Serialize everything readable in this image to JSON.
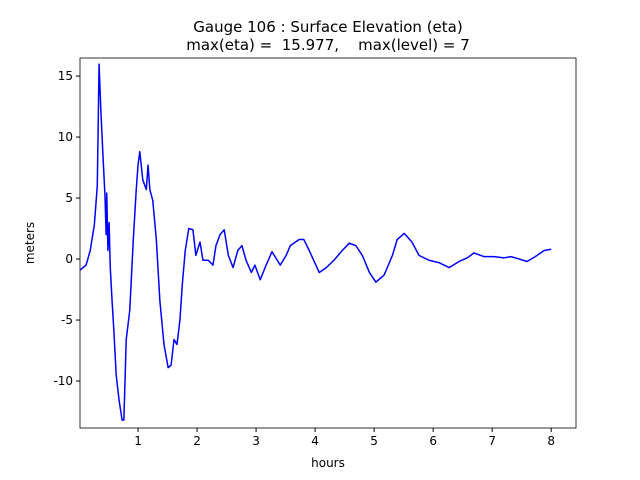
{
  "chart_data": {
    "type": "line",
    "title": "Gauge 106 : Surface Elevation (eta)",
    "subtitle": "max(eta) =  15.977,    max(level) = 7",
    "x_label": "hours",
    "y_label": "meters",
    "xlim": [
      0.017,
      8.42
    ],
    "ylim": [
      -13.85,
      16.48
    ],
    "xticks": [
      1,
      2,
      3,
      4,
      5,
      6,
      7,
      8
    ],
    "yticks": [
      -10,
      -5,
      0,
      5,
      10,
      15
    ],
    "grid": false,
    "series": [
      {
        "name": "eta",
        "color": "#0000ff",
        "x": [
          0.02,
          0.12,
          0.19,
          0.26,
          0.31,
          0.34,
          0.37,
          0.41,
          0.44,
          0.46,
          0.47,
          0.49,
          0.51,
          0.53,
          0.56,
          0.59,
          0.63,
          0.68,
          0.73,
          0.76,
          0.8,
          0.86,
          0.92,
          0.97,
          1.0,
          1.03,
          1.08,
          1.14,
          1.17,
          1.2,
          1.25,
          1.31,
          1.34,
          1.37,
          1.44,
          1.51,
          1.56,
          1.61,
          1.66,
          1.71,
          1.75,
          1.8,
          1.86,
          1.93,
          1.98,
          2.05,
          2.1,
          2.19,
          2.27,
          2.32,
          2.39,
          2.46,
          2.53,
          2.61,
          2.69,
          2.76,
          2.83,
          2.92,
          2.98,
          3.07,
          3.17,
          3.27,
          3.41,
          3.51,
          3.58,
          3.73,
          3.81,
          3.9,
          4.07,
          4.19,
          4.32,
          4.46,
          4.58,
          4.69,
          4.8,
          4.92,
          5.03,
          5.17,
          5.31,
          5.39,
          5.51,
          5.64,
          5.76,
          5.93,
          6.1,
          6.27,
          6.44,
          6.58,
          6.69,
          6.86,
          7.03,
          7.2,
          7.32,
          7.46,
          7.59,
          7.73,
          7.88,
          8.0
        ],
        "values": [
          -0.9,
          -0.5,
          0.7,
          2.8,
          6,
          15.977,
          12.2,
          8.1,
          5.2,
          2,
          5.4,
          0.7,
          3,
          -0.7,
          -3.4,
          -5.8,
          -9.5,
          -11.6,
          -13.2,
          -13.2,
          -6.6,
          -4.2,
          1.6,
          5.7,
          7.7,
          8.8,
          6.5,
          5.7,
          7.7,
          5.7,
          4.8,
          1.6,
          -0.9,
          -3.4,
          -7,
          -8.9,
          -8.7,
          -6.6,
          -7,
          -5,
          -2.1,
          0.7,
          2.5,
          2.4,
          0.3,
          1.4,
          -0.1,
          -0.1,
          -0.5,
          1.1,
          2,
          2.4,
          0.3,
          -0.7,
          0.7,
          1.1,
          -0.1,
          -1.1,
          -0.5,
          -1.7,
          -0.5,
          0.6,
          -0.5,
          0.3,
          1.1,
          1.6,
          1.6,
          0.7,
          -1.1,
          -0.7,
          -0.1,
          0.7,
          1.3,
          1.1,
          0.3,
          -1.1,
          -1.9,
          -1.3,
          0.3,
          1.6,
          2.1,
          1.4,
          0.3,
          -0.1,
          -0.3,
          -0.7,
          -0.2,
          0.1,
          0.5,
          0.2,
          0.2,
          0.1,
          0.2,
          0,
          -0.2,
          0.2,
          0.7,
          0.8
        ]
      }
    ]
  }
}
